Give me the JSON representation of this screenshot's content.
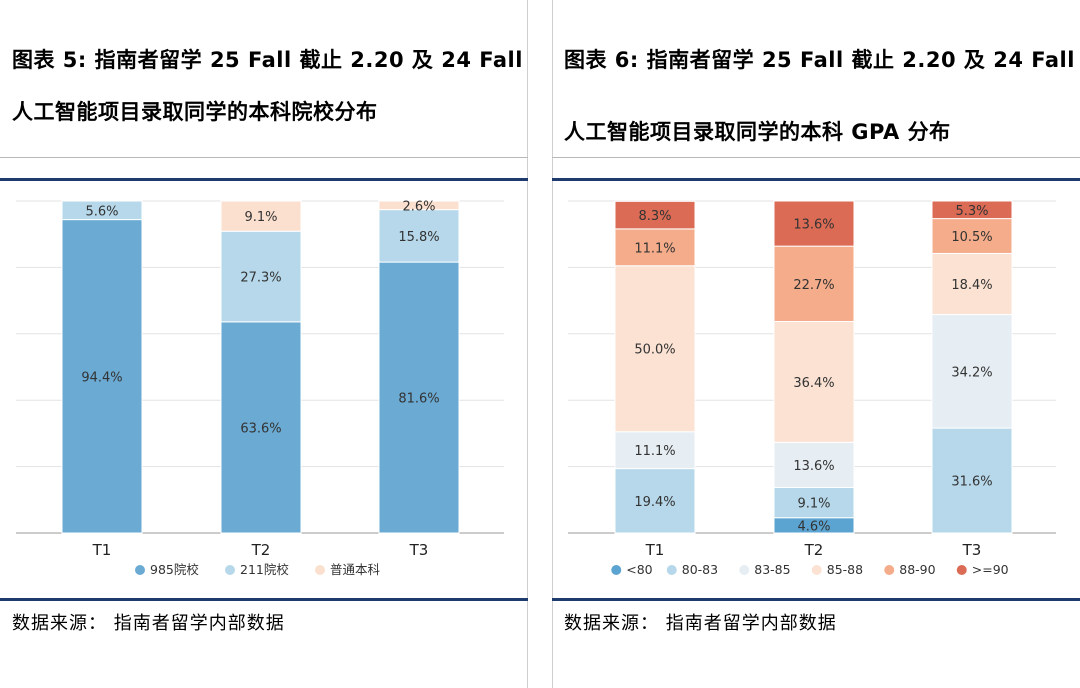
{
  "panels": [
    {
      "title_line1": "图表 5: 指南者留学 25 Fall 截止 2.20 及 24 Fall",
      "title_line2": "人工智能项目录取同学的本科院校分布",
      "source": "数据来源：  指南者留学内部数据"
    },
    {
      "title_line1": "图表 6: 指南者留学 25 Fall 截止 2.20 及 24 Fall",
      "title_line2": "人工智能项目录取同学的本科 GPA 分布",
      "source": "数据来源：  指南者留学内部数据"
    }
  ],
  "chart_data": [
    {
      "type": "bar",
      "stacked": true,
      "categories": [
        "T1",
        "T2",
        "T3"
      ],
      "ylim": [
        0,
        100
      ],
      "grid": true,
      "legend_position": "bottom",
      "series": [
        {
          "name": "985院校",
          "color": "#6aaad3",
          "values": [
            94.4,
            63.6,
            81.6
          ],
          "labels": [
            "94.4%",
            "63.6%",
            "81.6%"
          ]
        },
        {
          "name": "211院校",
          "color": "#b6d8ea",
          "values": [
            5.6,
            27.3,
            15.8
          ],
          "labels": [
            "5.6%",
            "27.3%",
            "15.8%"
          ]
        },
        {
          "name": "普通本科",
          "color": "#fbe0d0",
          "values": [
            0,
            9.1,
            2.6
          ],
          "labels": [
            "",
            "9.1%",
            "2.6%"
          ]
        }
      ]
    },
    {
      "type": "bar",
      "stacked": true,
      "categories": [
        "T1",
        "T2",
        "T3"
      ],
      "ylim": [
        0,
        100
      ],
      "grid": true,
      "legend_position": "bottom",
      "series": [
        {
          "name": "<80",
          "color": "#5ba3d0",
          "values": [
            0,
            4.6,
            0
          ],
          "labels": [
            "",
            "4.6%",
            ""
          ]
        },
        {
          "name": "80-83",
          "color": "#b6d8ea",
          "values": [
            19.4,
            9.1,
            31.6
          ],
          "labels": [
            "19.4%",
            "9.1%",
            "31.6%"
          ]
        },
        {
          "name": "83-85",
          "color": "#e6eef4",
          "values": [
            11.1,
            13.6,
            34.2
          ],
          "labels": [
            "11.1%",
            "13.6%",
            "34.2%"
          ]
        },
        {
          "name": "85-88",
          "color": "#fbe2d3",
          "values": [
            50.0,
            36.4,
            18.4
          ],
          "labels": [
            "50.0%",
            "36.4%",
            "18.4%"
          ]
        },
        {
          "name": "88-90",
          "color": "#f4ac8a",
          "values": [
            11.1,
            22.7,
            10.5
          ],
          "labels": [
            "11.1%",
            "22.7%",
            "10.5%"
          ]
        },
        {
          "name": ">=90",
          "color": "#db6b55",
          "values": [
            8.3,
            13.6,
            5.3
          ],
          "labels": [
            "8.3%",
            "13.6%",
            "5.3%"
          ]
        }
      ]
    }
  ]
}
